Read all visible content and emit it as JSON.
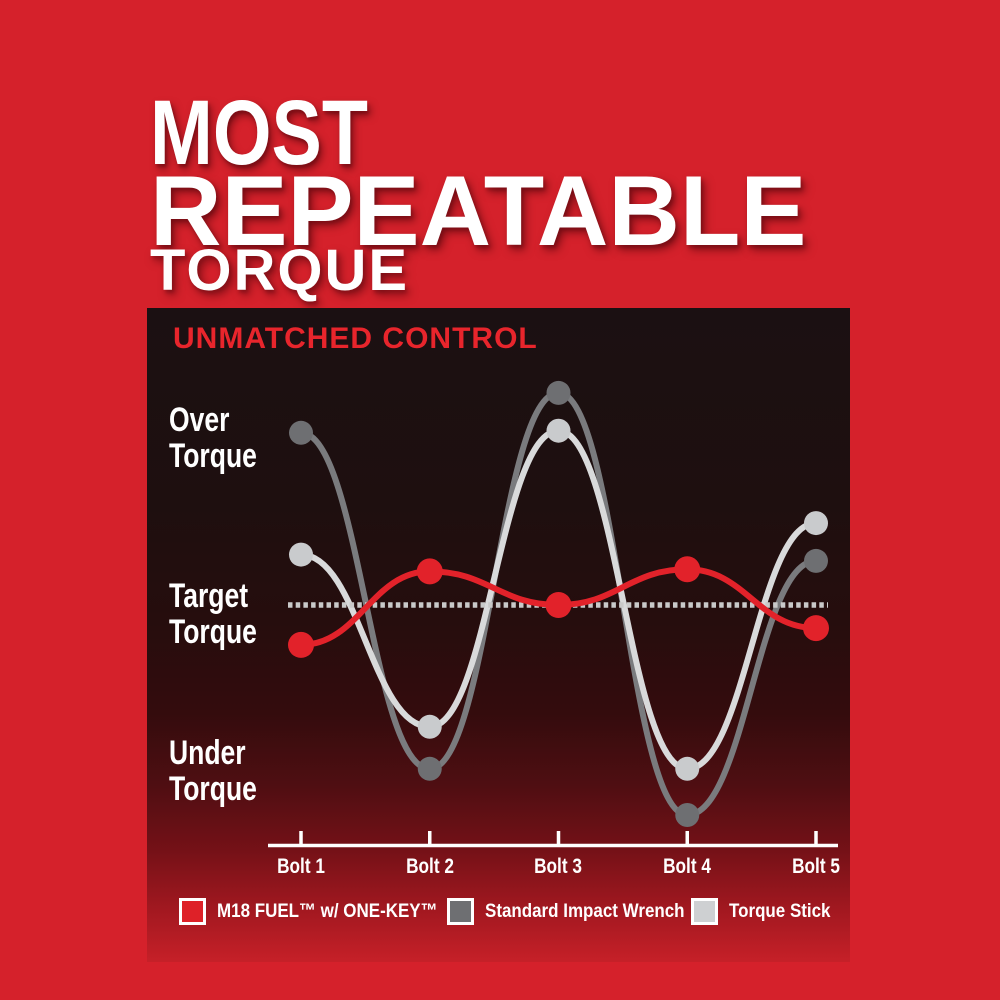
{
  "page": {
    "bg_color": "#d5212b",
    "title_line1": "MOST",
    "title_line2": "REPEATABLE",
    "title_line3": "TORQUE"
  },
  "panel": {
    "heading": "UNMATCHED CONTROL",
    "heading_color": "#e8252c"
  },
  "chart_data": {
    "type": "line",
    "title": "UNMATCHED CONTROL",
    "categories": [
      "Bolt 1",
      "Bolt 2",
      "Bolt 3",
      "Bolt 4",
      "Bolt 5"
    ],
    "y_axis_labels": [
      "Over\nTorque",
      "Target\nTorque",
      "Under\nTorque"
    ],
    "value_unit": "torque deviation relative to target (0 = target torque, +1 = over-torque extreme, -1 = under-torque extreme)",
    "ylim": [
      -1.2,
      1.2
    ],
    "grid": false,
    "legend_position": "bottom",
    "target_line": {
      "value": 0,
      "style": "dotted",
      "color": "#c9c9c9"
    },
    "axis_color": "#ffffff",
    "series": [
      {
        "name": "M18 FUEL™ w/ ONE-KEY™",
        "line_color": "#e2222a",
        "dot_color": "#e2222a",
        "swatch_color": "#de2128",
        "dot_radius": 13,
        "values": [
          -0.19,
          0.16,
          0.0,
          0.17,
          -0.11
        ]
      },
      {
        "name": "Standard Impact Wrench",
        "line_color": "#7a7b7e",
        "dot_color": "#6e6f72",
        "swatch_color": "#6e6f72",
        "dot_radius": 12,
        "values": [
          0.82,
          -0.78,
          1.01,
          -1.0,
          0.21
        ]
      },
      {
        "name": "Torque Stick",
        "line_color": "#d9dadb",
        "dot_color": "#c9cbcd",
        "swatch_color": "#ced0d2",
        "dot_radius": 12,
        "values": [
          0.24,
          -0.58,
          0.83,
          -0.78,
          0.39
        ]
      }
    ],
    "draw_order": [
      1,
      2,
      0
    ]
  }
}
